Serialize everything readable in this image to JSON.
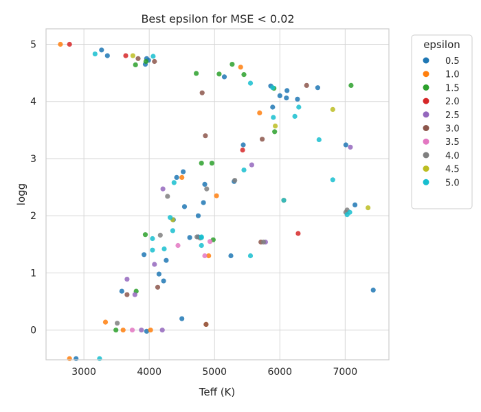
{
  "chart_data": {
    "type": "scatter",
    "title": "Best epsilon for MSE < 0.02",
    "xlabel": "Teff (K)",
    "ylabel": "logg",
    "xlim": [
      2420,
      7670
    ],
    "ylim": [
      5.27,
      -0.52
    ],
    "y_inverted": true,
    "grid": true,
    "x_ticks": [
      3000,
      4000,
      5000,
      6000,
      7000
    ],
    "y_ticks": [
      0,
      1,
      2,
      3,
      4,
      5
    ],
    "legend": {
      "title": "epsilon",
      "placement": "outside-right",
      "entries": [
        {
          "label": "0.5",
          "color": "#1f77b4"
        },
        {
          "label": "1.0",
          "color": "#ff7f0e"
        },
        {
          "label": "1.5",
          "color": "#2ca02c"
        },
        {
          "label": "2.0",
          "color": "#d62728"
        },
        {
          "label": "2.5",
          "color": "#9467bd"
        },
        {
          "label": "3.0",
          "color": "#8c564b"
        },
        {
          "label": "3.5",
          "color": "#e377c2"
        },
        {
          "label": "4.0",
          "color": "#7f7f7f"
        },
        {
          "label": "4.5",
          "color": "#bcbd22"
        },
        {
          "label": "5.0",
          "color": "#17becf"
        }
      ]
    },
    "series": [
      {
        "name": "0.5",
        "color": "#1f77b4",
        "points": [
          [
            2880,
            -0.5
          ],
          [
            3960,
            -0.02
          ],
          [
            4500,
            0.2
          ],
          [
            7430,
            0.7
          ],
          [
            3580,
            0.68
          ],
          [
            4220,
            0.86
          ],
          [
            4150,
            0.98
          ],
          [
            4260,
            1.22
          ],
          [
            3920,
            1.32
          ],
          [
            5250,
            1.3
          ],
          [
            4620,
            1.62
          ],
          [
            4750,
            1.63
          ],
          [
            4750,
            2.0
          ],
          [
            4540,
            2.16
          ],
          [
            4830,
            2.23
          ],
          [
            4850,
            2.55
          ],
          [
            4420,
            2.67
          ],
          [
            4520,
            2.77
          ],
          [
            4370,
            1.93
          ],
          [
            5300,
            2.6
          ],
          [
            5440,
            3.24
          ],
          [
            7010,
            3.24
          ],
          [
            7150,
            2.19
          ],
          [
            5890,
            3.9
          ],
          [
            6270,
            4.04
          ],
          [
            6100,
            4.06
          ],
          [
            6000,
            4.1
          ],
          [
            6110,
            4.19
          ],
          [
            5860,
            4.27
          ],
          [
            6580,
            4.24
          ],
          [
            5150,
            4.43
          ],
          [
            3940,
            4.65
          ],
          [
            3990,
            4.72
          ],
          [
            3960,
            4.75
          ],
          [
            3360,
            4.8
          ],
          [
            3270,
            4.9
          ]
        ]
      },
      {
        "name": "1.0",
        "color": "#ff7f0e",
        "points": [
          [
            2780,
            -0.5
          ],
          [
            3600,
            0.0
          ],
          [
            3330,
            0.14
          ],
          [
            4020,
            0.0
          ],
          [
            4870,
            0.1
          ],
          [
            4910,
            1.3
          ],
          [
            5030,
            2.35
          ],
          [
            4500,
            2.67
          ],
          [
            6060,
            2.27
          ],
          [
            5690,
            3.8
          ],
          [
            5400,
            4.6
          ],
          [
            2640,
            5.0
          ]
        ]
      },
      {
        "name": "1.5",
        "color": "#2ca02c",
        "points": [
          [
            3490,
            0.0
          ],
          [
            3800,
            0.68
          ],
          [
            3940,
            1.67
          ],
          [
            4980,
            1.58
          ],
          [
            4800,
            2.92
          ],
          [
            4960,
            2.92
          ],
          [
            5920,
            3.47
          ],
          [
            5910,
            4.23
          ],
          [
            5070,
            4.48
          ],
          [
            5450,
            4.47
          ],
          [
            7090,
            4.28
          ],
          [
            4720,
            4.49
          ],
          [
            5270,
            4.65
          ],
          [
            3790,
            4.64
          ],
          [
            3950,
            4.7
          ]
        ]
      },
      {
        "name": "2.0",
        "color": "#d62728",
        "points": [
          [
            6280,
            1.69
          ],
          [
            5430,
            3.15
          ],
          [
            3640,
            4.8
          ],
          [
            2780,
            5.0
          ]
        ]
      },
      {
        "name": "2.5",
        "color": "#9467bd",
        "points": [
          [
            3880,
            0.0
          ],
          [
            4200,
            0.0
          ],
          [
            3780,
            0.62
          ],
          [
            3660,
            0.89
          ],
          [
            4080,
            1.15
          ],
          [
            5780,
            1.54
          ],
          [
            4210,
            2.47
          ],
          [
            5570,
            2.89
          ],
          [
            7080,
            3.2
          ]
        ]
      },
      {
        "name": "3.0",
        "color": "#8c564b",
        "points": [
          [
            4870,
            0.1
          ],
          [
            3660,
            0.62
          ],
          [
            4130,
            0.75
          ],
          [
            5710,
            1.54
          ],
          [
            4860,
            3.4
          ],
          [
            5730,
            3.34
          ],
          [
            4810,
            4.15
          ],
          [
            6410,
            4.28
          ],
          [
            3830,
            4.75
          ],
          [
            4080,
            4.7
          ]
        ]
      },
      {
        "name": "3.5",
        "color": "#e377c2",
        "points": [
          [
            3740,
            0.0
          ],
          [
            4440,
            1.48
          ],
          [
            4850,
            1.3
          ],
          [
            4930,
            1.55
          ]
        ]
      },
      {
        "name": "4.0",
        "color": "#7f7f7f",
        "points": [
          [
            3510,
            0.12
          ],
          [
            4170,
            1.66
          ],
          [
            4730,
            1.63
          ],
          [
            4780,
            1.61
          ],
          [
            4280,
            2.34
          ],
          [
            4880,
            2.47
          ],
          [
            5310,
            2.62
          ],
          [
            5750,
            1.54
          ],
          [
            7010,
            2.06
          ],
          [
            7030,
            2.1
          ]
        ]
      },
      {
        "name": "4.5",
        "color": "#bcbd22",
        "points": [
          [
            4360,
            1.93
          ],
          [
            7350,
            2.14
          ],
          [
            5930,
            3.57
          ],
          [
            6810,
            3.86
          ],
          [
            3750,
            4.8
          ]
        ]
      },
      {
        "name": "5.0",
        "color": "#17becf",
        "points": [
          [
            3240,
            -0.5
          ],
          [
            5550,
            1.3
          ],
          [
            4050,
            1.4
          ],
          [
            4230,
            1.42
          ],
          [
            4800,
            1.48
          ],
          [
            4050,
            1.6
          ],
          [
            4800,
            1.62
          ],
          [
            4360,
            1.74
          ],
          [
            4320,
            1.97
          ],
          [
            4800,
            1.63
          ],
          [
            6060,
            2.27
          ],
          [
            7030,
            2.02
          ],
          [
            7070,
            2.06
          ],
          [
            4380,
            2.58
          ],
          [
            5450,
            2.8
          ],
          [
            6810,
            2.63
          ],
          [
            6600,
            3.33
          ],
          [
            5900,
            3.72
          ],
          [
            6230,
            3.74
          ],
          [
            6290,
            3.9
          ],
          [
            5550,
            4.32
          ],
          [
            3170,
            4.83
          ],
          [
            4060,
            4.79
          ],
          [
            5890,
            4.24
          ]
        ]
      }
    ]
  }
}
